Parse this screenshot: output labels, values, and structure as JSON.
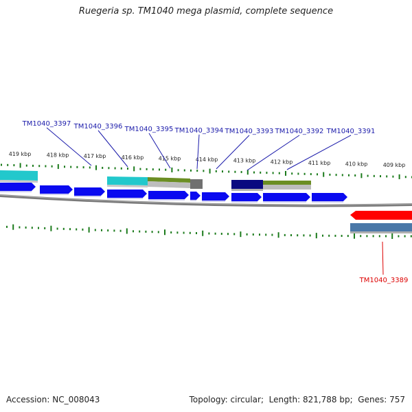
{
  "title": "Ruegeria sp. TM1040 mega plasmid, complete sequence",
  "footer": {
    "accession_label": "Accession:",
    "accession": "NC_008043",
    "topology_label": "Topology:",
    "topology": "circular",
    "length_label": "Length:",
    "length": "821,788 bp",
    "genes_label": "Genes:",
    "genes": "757"
  },
  "colors": {
    "backbone": "#808080",
    "tick": "#1a7a1a",
    "forward_gene": "#0a0af0",
    "forward_label": "#1a1aaa",
    "reverse_gene": "#ff0000",
    "reverse_label": "#dd0000",
    "cyan": "#22c8cc",
    "olive": "#6b8e23",
    "navy": "#0a0a80",
    "dark_gray": "#707070",
    "steel_blue": "#4a78a8"
  },
  "scale_labels": [
    "419 kbp",
    "418 kbp",
    "417 kbp",
    "416 kbp",
    "415 kbp",
    "414 kbp",
    "413 kbp",
    "412 kbp",
    "411 kbp",
    "410 kbp",
    "409 kbp"
  ],
  "forward_gene_labels": [
    "TM1040_3397",
    "TM1040_3396",
    "TM1040_3395",
    "TM1040_3394",
    "TM1040_3393",
    "TM1040_3392",
    "TM1040_3391"
  ],
  "reverse_gene_labels": [
    "TM1040_3389"
  ]
}
